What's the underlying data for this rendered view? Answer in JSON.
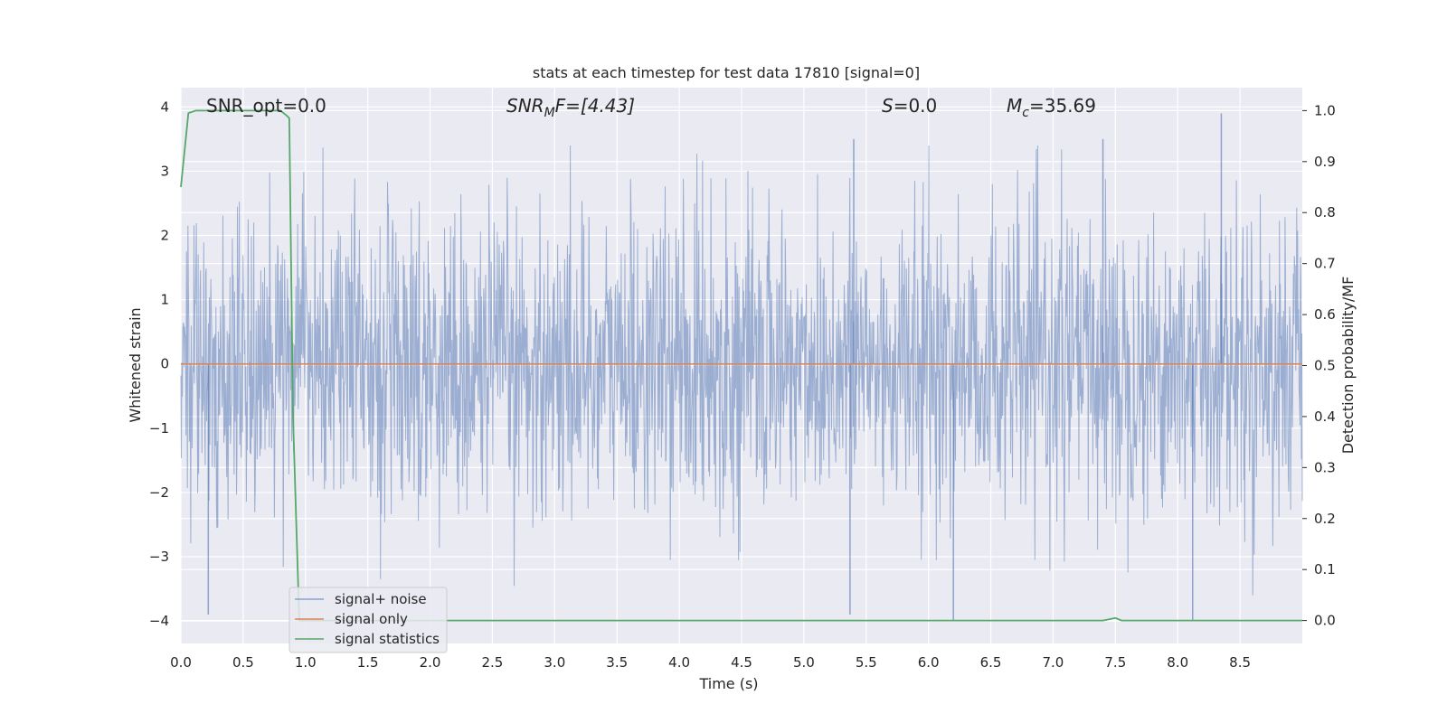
{
  "chart_data": {
    "type": "line",
    "title": "stats at each timestep for test data 17810 [signal=0]",
    "xlabel": "Time (s)",
    "ylabel_left": "Whitened strain",
    "ylabel_right": "Detection probability/MF",
    "xlim": [
      0.0,
      9.0
    ],
    "ylim_left": [
      -4.35,
      4.3
    ],
    "ylim_right": [
      -0.045,
      1.045
    ],
    "x_ticks": [
      "0.0",
      "0.5",
      "1.0",
      "1.5",
      "2.0",
      "2.5",
      "3.0",
      "3.5",
      "4.0",
      "4.5",
      "5.0",
      "5.5",
      "6.0",
      "6.5",
      "7.0",
      "7.5",
      "8.0",
      "8.5"
    ],
    "y_left_ticks": [
      "4",
      "3",
      "2",
      "1",
      "0",
      "−1",
      "−2",
      "−3",
      "−4"
    ],
    "y_right_ticks": [
      "1.0",
      "0.9",
      "0.8",
      "0.7",
      "0.6",
      "0.5",
      "0.4",
      "0.3",
      "0.2",
      "0.1",
      "0.0"
    ],
    "grid": true,
    "legend_position": "lower-left",
    "annotations": {
      "snr_opt": "SNR_opt=0.0",
      "snr_mf_base": "SNR",
      "snr_mf_sub": "M",
      "snr_mf_rest": "F=[4.43]",
      "s_italic": "S",
      "s_rest": "=0.0",
      "mc_italic": "M",
      "mc_sub": "c",
      "mc_rest": "=35.69"
    },
    "series": [
      {
        "name": "signal+ noise",
        "axis": "left",
        "color": "#4c72b0",
        "description_values": {
          "sample_rate_note": "dense noise, approx. ±4",
          "notable_peaks": [
            {
              "x": 8.35,
              "y": 3.9
            },
            {
              "x": 5.4,
              "y": 3.5
            },
            {
              "x": 7.4,
              "y": 3.5
            },
            {
              "x": 0.22,
              "y": -3.9
            },
            {
              "x": 5.37,
              "y": -3.9
            },
            {
              "x": 6.2,
              "y": -4.0
            },
            {
              "x": 8.12,
              "y": -4.0
            }
          ]
        }
      },
      {
        "name": "signal only",
        "axis": "left",
        "color": "#dd8452",
        "x": [
          0.0,
          9.0
        ],
        "y": [
          0.0,
          0.0
        ]
      },
      {
        "name": "signal statistics",
        "axis": "right",
        "color": "#55a868",
        "x": [
          0.0,
          0.06,
          0.12,
          0.3,
          0.5,
          0.7,
          0.8,
          0.85,
          0.87,
          0.87,
          0.9,
          0.95,
          1.0,
          2.0,
          3.0,
          4.0,
          5.0,
          6.0,
          7.0,
          7.3,
          7.4,
          7.5,
          7.55,
          7.6,
          8.0,
          9.0
        ],
        "y": [
          0.85,
          0.995,
          1.0,
          1.0,
          1.0,
          1.0,
          1.0,
          0.99,
          0.985,
          0.98,
          0.4,
          0.0,
          0.0,
          0.0,
          0.0,
          0.0,
          0.0,
          0.0,
          0.0,
          0.0,
          0.0,
          0.005,
          0.0,
          0.0,
          0.0,
          0.0
        ]
      }
    ]
  }
}
